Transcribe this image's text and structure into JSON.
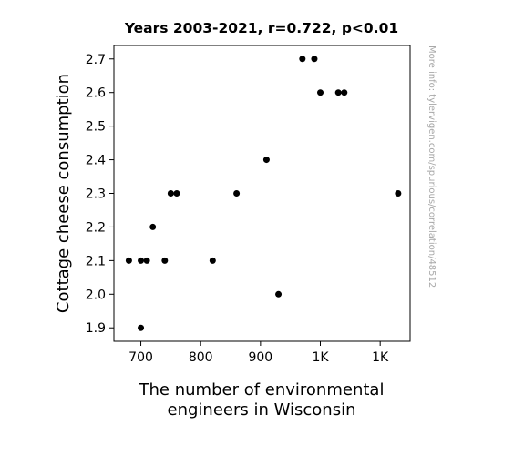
{
  "chart_data": {
    "type": "scatter",
    "title": "Years 2003-2021, r=0.722, p<0.01",
    "xlabel_lines": [
      "The number of environmental",
      "engineers in Wisconsin"
    ],
    "ylabel": "Cottage cheese consumption",
    "xlim": [
      655,
      1150
    ],
    "ylim": [
      1.86,
      2.74
    ],
    "x_ticks": [
      {
        "value": 700,
        "label": "700"
      },
      {
        "value": 800,
        "label": "800"
      },
      {
        "value": 900,
        "label": "900"
      },
      {
        "value": 1000,
        "label": "1K"
      },
      {
        "value": 1100,
        "label": "1K"
      }
    ],
    "y_ticks": [
      {
        "value": 1.9,
        "label": "1.9"
      },
      {
        "value": 2.0,
        "label": "2.0"
      },
      {
        "value": 2.1,
        "label": "2.1"
      },
      {
        "value": 2.2,
        "label": "2.2"
      },
      {
        "value": 2.3,
        "label": "2.3"
      },
      {
        "value": 2.4,
        "label": "2.4"
      },
      {
        "value": 2.5,
        "label": "2.5"
      },
      {
        "value": 2.6,
        "label": "2.6"
      },
      {
        "value": 2.7,
        "label": "2.7"
      }
    ],
    "points": [
      {
        "x": 680,
        "y": 2.1
      },
      {
        "x": 700,
        "y": 2.1
      },
      {
        "x": 710,
        "y": 2.1
      },
      {
        "x": 700,
        "y": 1.9
      },
      {
        "x": 720,
        "y": 2.2
      },
      {
        "x": 740,
        "y": 2.1
      },
      {
        "x": 750,
        "y": 2.3
      },
      {
        "x": 760,
        "y": 2.3
      },
      {
        "x": 820,
        "y": 2.1
      },
      {
        "x": 860,
        "y": 2.3
      },
      {
        "x": 910,
        "y": 2.4
      },
      {
        "x": 930,
        "y": 2.0
      },
      {
        "x": 970,
        "y": 2.7
      },
      {
        "x": 990,
        "y": 2.7
      },
      {
        "x": 1000,
        "y": 2.6
      },
      {
        "x": 1030,
        "y": 2.6
      },
      {
        "x": 1040,
        "y": 2.6
      },
      {
        "x": 1130,
        "y": 2.3
      }
    ],
    "marker_color": "#000000",
    "grid": false,
    "legend": "none"
  },
  "side_note": "More info: tylervigen.com/spurious/correlation/48512"
}
